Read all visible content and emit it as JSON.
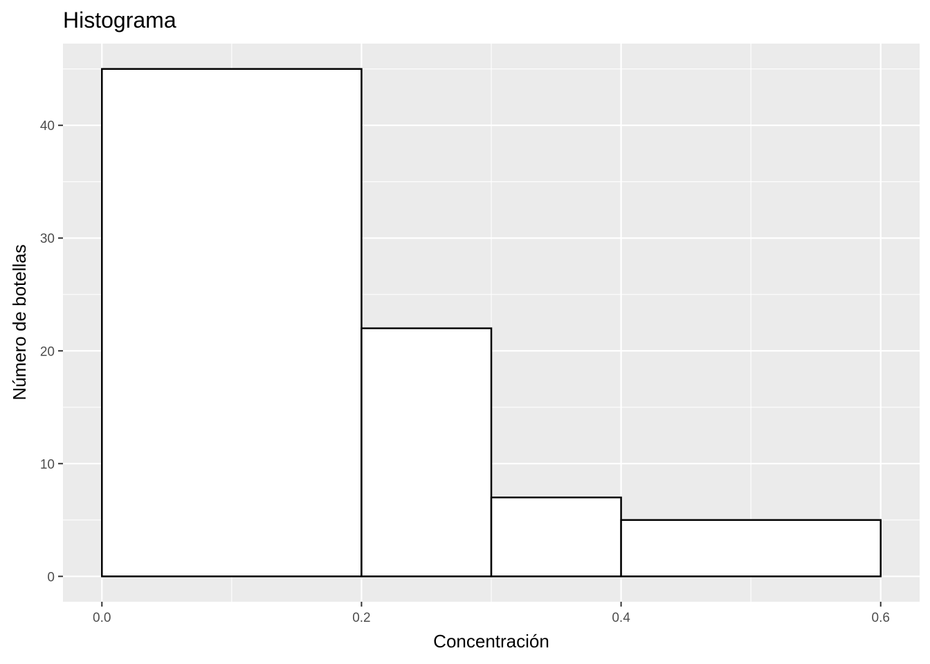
{
  "chart_data": {
    "type": "bar",
    "subtype": "histogram",
    "title": "Histograma",
    "xlabel": "Concentración",
    "ylabel": "Número de botellas",
    "bins": [
      {
        "x0": 0.0,
        "x1": 0.2,
        "count": 45
      },
      {
        "x0": 0.2,
        "x1": 0.3,
        "count": 22
      },
      {
        "x0": 0.3,
        "x1": 0.4,
        "count": 7
      },
      {
        "x0": 0.4,
        "x1": 0.6,
        "count": 5
      }
    ],
    "xlim": [
      -0.03,
      0.63
    ],
    "ylim": [
      -2.25,
      47.25
    ],
    "x_ticks": [
      0.0,
      0.2,
      0.4,
      0.6
    ],
    "x_tick_labels": [
      "0.0",
      "0.2",
      "0.4",
      "0.6"
    ],
    "x_minor_ticks": [
      0.1,
      0.3,
      0.5
    ],
    "y_ticks": [
      0,
      10,
      20,
      30,
      40
    ],
    "y_tick_labels": [
      "0",
      "10",
      "20",
      "30",
      "40"
    ],
    "y_minor_ticks": [
      5,
      15,
      25,
      35,
      45
    ],
    "grid": true,
    "colors": {
      "panel_background": "#ebebeb",
      "grid": "#ffffff",
      "bar_fill": "#ffffff",
      "bar_outline": "#000000"
    }
  }
}
